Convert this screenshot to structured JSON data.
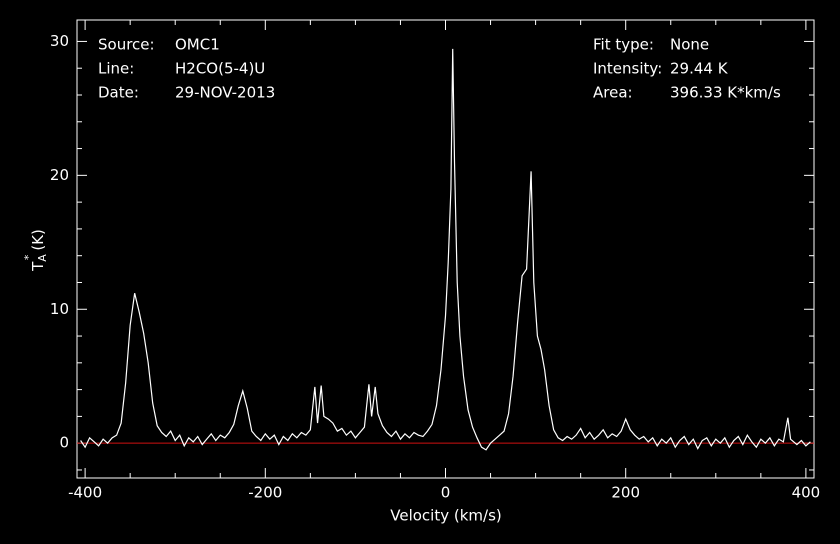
{
  "chart_data": {
    "type": "line",
    "xlabel": "Velocity (km/s)",
    "ylabel": {
      "base": "T",
      "sub": "A",
      "sup": "*",
      "unit": "(K)"
    },
    "info": [
      {
        "label": "Source:",
        "value": "OMC1"
      },
      {
        "label": "Line:",
        "value": "H2CO(5-4)U"
      },
      {
        "label": "Date:",
        "value": "29-NOV-2013"
      }
    ],
    "fit_info": [
      {
        "label": "Fit type:",
        "value": "None"
      },
      {
        "label": "Intensity:",
        "value": "29.44 K"
      },
      {
        "label": "Area:",
        "value": "396.33 K*km/s"
      }
    ],
    "color": "#ffffff",
    "baseline": 0,
    "baseline_color": "#d01010",
    "xlim": [
      -409,
      409
    ],
    "ylim": [
      -2.6,
      31.6
    ],
    "xticks": [
      -400,
      -200,
      0,
      200,
      400
    ],
    "xminorticks": [
      -350,
      -300,
      -250,
      -150,
      -100,
      -50,
      50,
      100,
      150,
      250,
      300,
      350
    ],
    "yticks": [
      0,
      10,
      20,
      30
    ],
    "yminorticks": [
      -2,
      2,
      4,
      6,
      8,
      12,
      14,
      16,
      18,
      22,
      24,
      26,
      28
    ],
    "x": [
      -405,
      -400,
      -395,
      -390,
      -385,
      -380,
      -375,
      -370,
      -365,
      -360,
      -355,
      -350,
      -345,
      -340,
      -335,
      -330,
      -325,
      -320,
      -315,
      -310,
      -305,
      -300,
      -295,
      -290,
      -285,
      -280,
      -275,
      -270,
      -265,
      -260,
      -255,
      -250,
      -245,
      -240,
      -235,
      -230,
      -225,
      -220,
      -215,
      -210,
      -205,
      -200,
      -195,
      -190,
      -185,
      -180,
      -175,
      -170,
      -165,
      -160,
      -155,
      -150,
      -145,
      -142,
      -138,
      -135,
      -130,
      -125,
      -120,
      -115,
      -110,
      -105,
      -100,
      -95,
      -90,
      -85,
      -82,
      -78,
      -75,
      -70,
      -65,
      -60,
      -55,
      -50,
      -45,
      -40,
      -35,
      -30,
      -25,
      -20,
      -15,
      -10,
      -5,
      0,
      3,
      6,
      8,
      10,
      13,
      16,
      20,
      25,
      30,
      35,
      40,
      45,
      50,
      55,
      60,
      65,
      70,
      75,
      80,
      85,
      90,
      95,
      98,
      102,
      106,
      110,
      115,
      120,
      125,
      130,
      135,
      140,
      145,
      150,
      155,
      160,
      165,
      170,
      175,
      180,
      185,
      190,
      195,
      200,
      205,
      210,
      215,
      220,
      225,
      230,
      235,
      240,
      245,
      250,
      255,
      260,
      265,
      270,
      275,
      280,
      285,
      290,
      295,
      300,
      305,
      310,
      315,
      320,
      325,
      330,
      335,
      340,
      345,
      350,
      355,
      360,
      365,
      370,
      375,
      380,
      383,
      390,
      395,
      400,
      405
    ],
    "values": [
      0.2,
      -0.3,
      0.4,
      0.1,
      -0.2,
      0.3,
      0.0,
      0.4,
      0.6,
      1.5,
      4.5,
      8.8,
      11.2,
      9.8,
      8.2,
      6.0,
      3.0,
      1.3,
      0.8,
      0.5,
      0.9,
      0.2,
      0.6,
      -0.2,
      0.4,
      0.1,
      0.5,
      -0.1,
      0.3,
      0.7,
      0.2,
      0.6,
      0.4,
      0.8,
      1.4,
      2.8,
      3.9,
      2.6,
      0.9,
      0.5,
      0.2,
      0.7,
      0.3,
      0.6,
      -0.1,
      0.5,
      0.2,
      0.7,
      0.4,
      0.8,
      0.6,
      1.0,
      4.2,
      1.5,
      4.3,
      2.0,
      1.8,
      1.5,
      0.9,
      1.1,
      0.6,
      0.9,
      0.4,
      0.8,
      1.2,
      4.4,
      2.0,
      4.2,
      2.2,
      1.3,
      0.8,
      0.5,
      0.9,
      0.3,
      0.7,
      0.4,
      0.8,
      0.6,
      0.5,
      0.9,
      1.4,
      2.8,
      5.5,
      9.5,
      13.5,
      19.0,
      29.44,
      21.0,
      12.0,
      8.0,
      5.0,
      2.5,
      1.2,
      0.4,
      -0.3,
      -0.5,
      0.0,
      0.3,
      0.6,
      0.9,
      2.2,
      5.0,
      9.0,
      12.5,
      13.0,
      20.3,
      12.0,
      8.0,
      7.0,
      5.5,
      2.8,
      1.0,
      0.4,
      0.2,
      0.5,
      0.3,
      0.6,
      1.1,
      0.4,
      0.8,
      0.3,
      0.6,
      1.0,
      0.4,
      0.7,
      0.5,
      0.9,
      1.8,
      1.0,
      0.6,
      0.3,
      0.5,
      0.1,
      0.4,
      -0.2,
      0.3,
      0.0,
      0.4,
      -0.3,
      0.2,
      0.5,
      -0.1,
      0.3,
      -0.4,
      0.2,
      0.4,
      -0.2,
      0.3,
      0.0,
      0.4,
      -0.3,
      0.2,
      0.5,
      -0.1,
      0.6,
      0.1,
      -0.3,
      0.3,
      0.0,
      0.4,
      -0.2,
      0.3,
      0.1,
      1.9,
      0.3,
      -0.1,
      0.2,
      -0.2,
      0.1
    ]
  }
}
